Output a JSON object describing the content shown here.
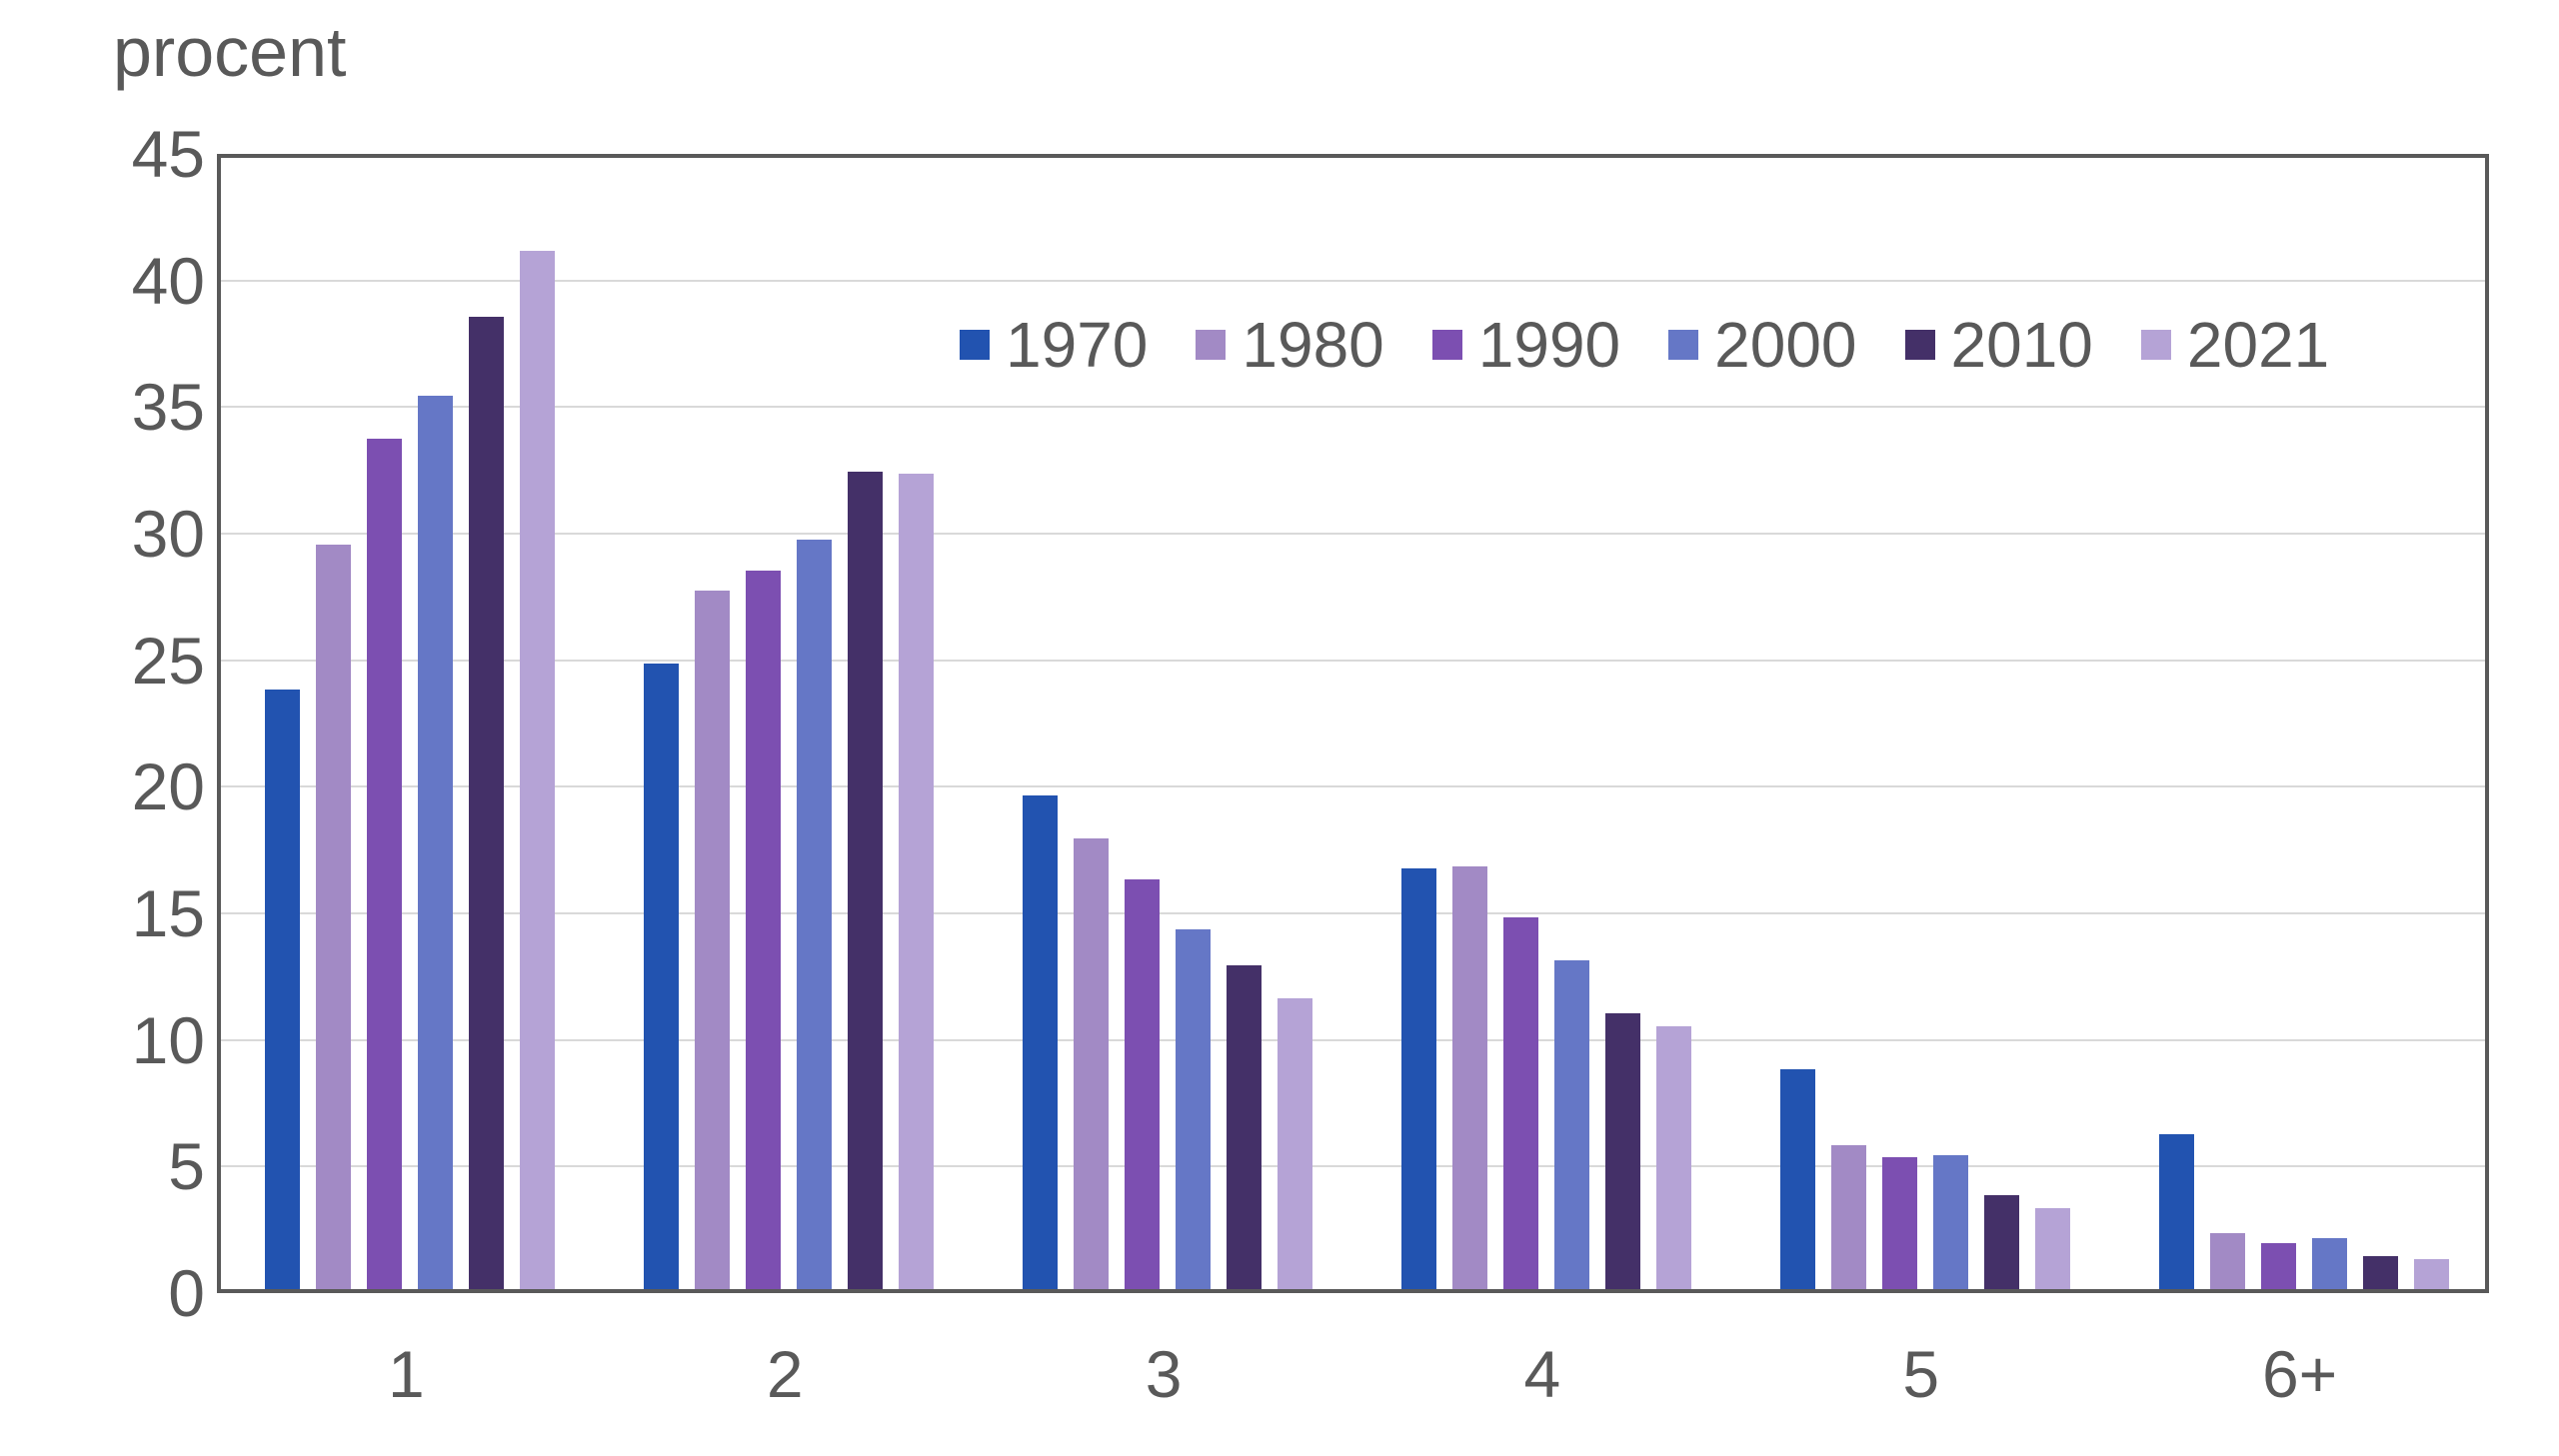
{
  "chart_data": {
    "type": "bar",
    "title": "procent",
    "ylabel": "procent",
    "categories": [
      "1",
      "2",
      "3",
      "4",
      "5",
      "6+"
    ],
    "series": [
      {
        "name": "1970",
        "color": "#2253B0",
        "values": [
          23.7,
          24.7,
          19.5,
          16.6,
          8.7,
          6.1
        ]
      },
      {
        "name": "1980",
        "color": "#A28AC5",
        "values": [
          29.4,
          27.6,
          17.8,
          16.7,
          5.7,
          2.2
        ]
      },
      {
        "name": "1990",
        "color": "#7C4FB1",
        "values": [
          33.6,
          28.4,
          16.2,
          14.7,
          5.2,
          1.8
        ]
      },
      {
        "name": "2000",
        "color": "#6577C6",
        "values": [
          35.3,
          29.6,
          14.2,
          13.0,
          5.3,
          2.0
        ]
      },
      {
        "name": "2010",
        "color": "#443068",
        "values": [
          38.4,
          32.3,
          12.8,
          10.9,
          3.7,
          1.3
        ]
      },
      {
        "name": "2021",
        "color": "#B5A3D6",
        "values": [
          41.0,
          32.2,
          11.5,
          10.4,
          3.2,
          1.2
        ]
      }
    ],
    "ylim": [
      0,
      45
    ],
    "ytick_step": 5,
    "yticks": [
      0,
      5,
      10,
      15,
      20,
      25,
      30,
      35,
      40,
      45
    ],
    "grid": true,
    "legend_position": "top-inside",
    "colors": {
      "axis_text": "#595959",
      "plot_border": "#595959",
      "gridline": "#D9D9D9",
      "background": "#FFFFFF"
    }
  }
}
